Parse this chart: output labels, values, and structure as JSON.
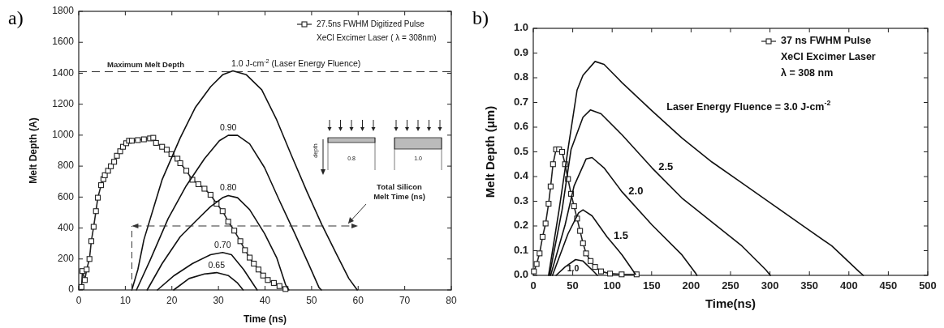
{
  "chart_data": [
    {
      "type": "line",
      "title": "a)",
      "xlabel": "Time (ns)",
      "ylabel": "Melt Depth (A)",
      "xlim": [
        0,
        80
      ],
      "ylim": [
        0,
        1800
      ],
      "xticks": [
        0,
        10,
        20,
        30,
        40,
        50,
        60,
        70,
        80
      ],
      "yticks": [
        0,
        200,
        400,
        600,
        800,
        1000,
        1200,
        1400,
        1600,
        1800
      ],
      "grid": false,
      "legend": "top right",
      "ref_lines": [
        {
          "axis": "y",
          "value": 1410,
          "label": "Maximum Melt Depth",
          "line_style": "dashed"
        }
      ],
      "annotations": [
        "XeCl Excimer Laser ( λ = 308nm)",
        "Total Silicon Melt Time (ns)",
        "depth",
        "0.8",
        "1.0"
      ],
      "series": [
        {
          "name": "27.5ns FWHM Digitized Pulse",
          "color": "#222222",
          "marker": "square",
          "x": [
            0.6,
            0.8,
            1.3,
            1.7,
            2.3,
            2.7,
            3.2,
            3.7,
            4.1,
            4.8,
            5.3,
            5.6,
            6.3,
            6.9,
            7.6,
            8.2,
            8.9,
            9.5,
            10.2,
            10.8,
            11.4,
            12.7,
            14.0,
            15.3,
            16.0,
            16.6,
            17.9,
            18.9,
            19.9,
            21.2,
            21.8,
            23.1,
            24.4,
            25.7,
            27.0,
            28.3,
            29.6,
            30.9,
            32.1,
            33.4,
            34.7,
            35.7,
            36.7,
            37.6,
            38.6,
            39.6,
            40.6,
            41.9,
            43.1,
            44.4
          ],
          "values": [
            19,
            122,
            64,
            132,
            200,
            315,
            408,
            509,
            596,
            677,
            716,
            741,
            770,
            799,
            828,
            867,
            896,
            925,
            948,
            964,
            964,
            968,
            973,
            979,
            983,
            950,
            925,
            906,
            877,
            848,
            819,
            770,
            712,
            683,
            654,
            615,
            557,
            509,
            441,
            383,
            315,
            257,
            209,
            170,
            132,
            93,
            64,
            45,
            25,
            6
          ]
        },
        {
          "name": "1.0 J-cm$^{-2}$  (Laser Energy Fluence)",
          "color": "#111111",
          "x": [
            11.4,
            12.7,
            14.0,
            17.9,
            21.8,
            25.0,
            28.3,
            30.9,
            33.1,
            36.0,
            39.3,
            42.5,
            45.7,
            49.0,
            52.2,
            55.4,
            58.0,
            59.8
          ],
          "values": [
            0,
            132,
            325,
            712,
            983,
            1177,
            1312,
            1390,
            1415,
            1390,
            1293,
            1099,
            867,
            635,
            422,
            228,
            74,
            0
          ]
        },
        {
          "name": "0.90",
          "color": "#111111",
          "x": [
            12.4,
            15.3,
            19.2,
            23.1,
            27.0,
            30.2,
            32.1,
            34.1,
            36.7,
            39.9,
            43.1,
            46.4,
            49.6,
            51.6,
            52.1
          ],
          "values": [
            0,
            190,
            461,
            674,
            848,
            964,
            999,
            999,
            944,
            790,
            577,
            364,
            151,
            15,
            0
          ]
        },
        {
          "name": "0.80",
          "color": "#111111",
          "x": [
            14.7,
            17.9,
            21.8,
            25.0,
            28.3,
            30.9,
            32.1,
            34.1,
            36.7,
            39.9,
            42.5,
            44.4,
            45.1
          ],
          "values": [
            0,
            170,
            344,
            441,
            538,
            596,
            610,
            596,
            519,
            364,
            209,
            35,
            0
          ]
        },
        {
          "name": "0.70",
          "color": "#111111",
          "x": [
            16.9,
            20.5,
            24.4,
            28.3,
            30.9,
            32.8,
            35.4,
            38.3
          ],
          "values": [
            0,
            93,
            170,
            228,
            242,
            228,
            132,
            0
          ]
        },
        {
          "name": "0.65",
          "color": "#111111",
          "x": [
            20.4,
            23.7,
            27.0,
            29.6,
            32.1,
            34.1,
            35.3
          ],
          "values": [
            0,
            74,
            103,
            112,
            93,
            45,
            0
          ]
        }
      ]
    },
    {
      "type": "line",
      "title": "b)",
      "xlabel": "Time(ns)",
      "ylabel": "Melt Depth (μm)",
      "xlim": [
        0,
        500
      ],
      "ylim": [
        0,
        1.0
      ],
      "xticks": [
        0,
        50,
        100,
        150,
        200,
        250,
        300,
        350,
        400,
        450,
        500
      ],
      "yticks": [
        {
          "value": 0,
          "label": "0.0"
        },
        0.1,
        0.2,
        0.3,
        0.4,
        0.5,
        0.6,
        0.7,
        0.8,
        0.9,
        {
          "value": 1,
          "label": "1.0"
        }
      ],
      "grid": false,
      "legend": "top right",
      "annotations": [
        "XeCl Excimer Laser",
        "λ = 308 nm"
      ],
      "series": [
        {
          "name": "37 ns FWHM Pulse",
          "color": "#222222",
          "marker": "square",
          "x": [
            0.8,
            4.2,
            8,
            11.8,
            15.6,
            19.4,
            22,
            25,
            28.9,
            32.7,
            36.5,
            40.3,
            44,
            47.9,
            51.7,
            55.5,
            59.3,
            63,
            66.9,
            72.6,
            78.3,
            85.9,
            97.3,
            112,
            131
          ],
          "values": [
            0.016,
            0.046,
            0.089,
            0.156,
            0.21,
            0.29,
            0.36,
            0.45,
            0.51,
            0.51,
            0.5,
            0.45,
            0.39,
            0.33,
            0.28,
            0.23,
            0.18,
            0.13,
            0.089,
            0.058,
            0.034,
            0.016,
            0.007,
            0.004,
            0.004
          ]
        },
        {
          "name": "Laser Energy Fluence = 3.0 J-cm$^{-2}$",
          "color": "#111111",
          "x": [
            19.4,
            32.7,
            44,
            55.5,
            63,
            78.3,
            89.7,
            112.5,
            150.5,
            188.4,
            226.4,
            264.4,
            302.4,
            340.4,
            378.4,
            412.6,
            418.3
          ],
          "values": [
            0,
            0.265,
            0.51,
            0.75,
            0.81,
            0.866,
            0.854,
            0.78,
            0.666,
            0.556,
            0.459,
            0.374,
            0.289,
            0.204,
            0.119,
            0.016,
            0
          ]
        },
        {
          "name": "2.5",
          "color": "#111111",
          "x": [
            20.5,
            36.5,
            47.9,
            63,
            72.6,
            85.9,
            112.5,
            150.5,
            188.4,
            226.4,
            264.4,
            294.8,
            300.5
          ],
          "values": [
            0,
            0.265,
            0.51,
            0.64,
            0.67,
            0.654,
            0.569,
            0.435,
            0.313,
            0.216,
            0.119,
            0.022,
            0
          ]
        },
        {
          "name": "2.0",
          "color": "#111111",
          "x": [
            22,
            40.3,
            51.7,
            66.9,
            74.5,
            89.7,
            112.5,
            150.5,
            188.4,
            205.5,
            207.4
          ],
          "values": [
            0,
            0.204,
            0.362,
            0.471,
            0.477,
            0.435,
            0.338,
            0.204,
            0.083,
            0.01,
            0
          ]
        },
        {
          "name": "1.5",
          "color": "#111111",
          "x": [
            24.3,
            44,
            57.4,
            63,
            74.5,
            93.5,
            112.5,
            129.6
          ],
          "values": [
            0,
            0.168,
            0.253,
            0.265,
            0.241,
            0.156,
            0.083,
            0.004
          ]
        },
        {
          "name": "1.0",
          "color": "#111111",
          "x": [
            28.9,
            40.3,
            53.6,
            63,
            74.5,
            81.3
          ],
          "values": [
            0,
            0.034,
            0.064,
            0.058,
            0.022,
            0
          ]
        }
      ]
    }
  ]
}
